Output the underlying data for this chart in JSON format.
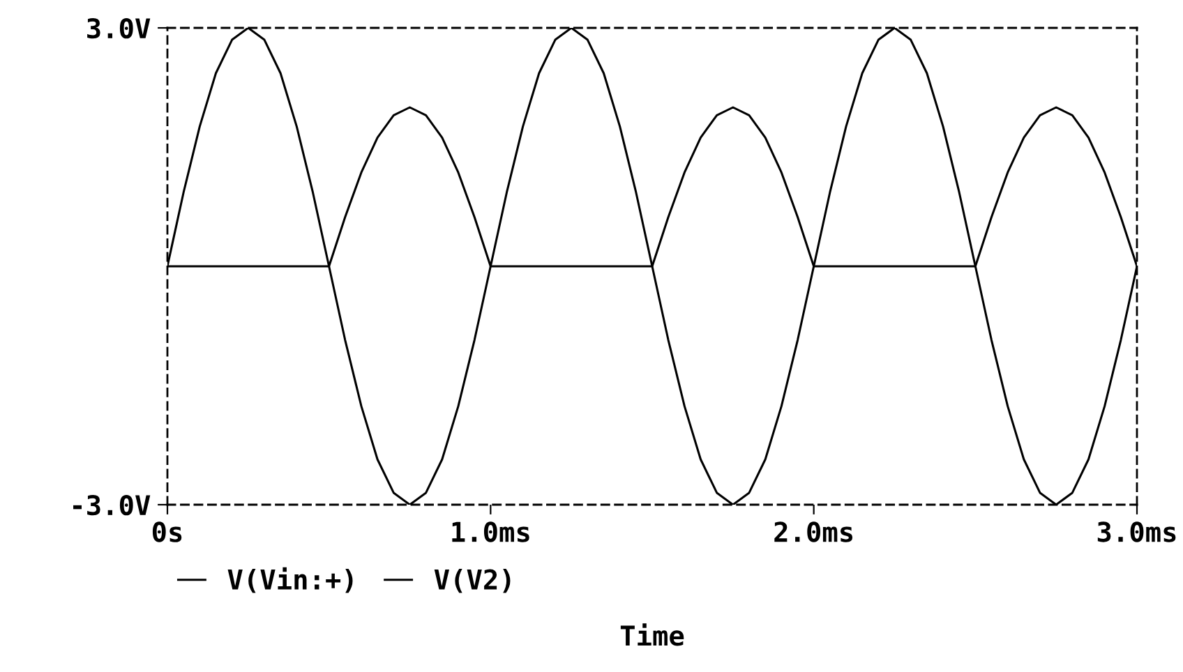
{
  "chart_data": {
    "type": "line",
    "xlabel": "Time",
    "x": [
      0,
      0.05,
      0.1,
      0.15,
      0.2,
      0.25,
      0.3,
      0.35,
      0.4,
      0.45,
      0.5,
      0.55,
      0.6,
      0.65,
      0.7,
      0.75,
      0.8,
      0.85,
      0.9,
      0.95,
      1.0,
      1.05,
      1.1,
      1.15,
      1.2,
      1.25,
      1.3,
      1.35,
      1.4,
      1.45,
      1.5,
      1.55,
      1.6,
      1.65,
      1.7,
      1.75,
      1.8,
      1.85,
      1.9,
      1.95,
      2.0,
      2.05,
      2.1,
      2.15,
      2.2,
      2.25,
      2.3,
      2.35,
      2.4,
      2.45,
      2.5,
      2.55,
      2.6,
      2.65,
      2.7,
      2.75,
      2.8,
      2.85,
      2.9,
      2.95,
      3.0
    ],
    "series": [
      {
        "name": "V(Vin:+)",
        "color": "#000000",
        "values": [
          0,
          0.93,
          1.76,
          2.43,
          2.85,
          3.0,
          2.85,
          2.43,
          1.76,
          0.93,
          0,
          -0.93,
          -1.76,
          -2.43,
          -2.85,
          -3.0,
          -2.85,
          -2.43,
          -1.76,
          -0.93,
          0,
          0.93,
          1.76,
          2.43,
          2.85,
          3.0,
          2.85,
          2.43,
          1.76,
          0.93,
          0,
          -0.93,
          -1.76,
          -2.43,
          -2.85,
          -3.0,
          -2.85,
          -2.43,
          -1.76,
          -0.93,
          0,
          0.93,
          1.76,
          2.43,
          2.85,
          3.0,
          2.85,
          2.43,
          1.76,
          0.93,
          0,
          -0.93,
          -1.76,
          -2.43,
          -2.85,
          -3.0,
          -2.85,
          -2.43,
          -1.76,
          -0.93,
          0
        ]
      },
      {
        "name": "V(V2)",
        "color": "#000000",
        "values": [
          0,
          0,
          0,
          0,
          0,
          0,
          0,
          0,
          0,
          0,
          0,
          0.62,
          1.18,
          1.62,
          1.9,
          2.0,
          1.9,
          1.62,
          1.18,
          0.62,
          0,
          0,
          0,
          0,
          0,
          0,
          0,
          0,
          0,
          0,
          0,
          0.62,
          1.18,
          1.62,
          1.9,
          2.0,
          1.9,
          1.62,
          1.18,
          0.62,
          0,
          0,
          0,
          0,
          0,
          0,
          0,
          0,
          0,
          0,
          0,
          0.62,
          1.18,
          1.62,
          1.9,
          2.0,
          1.9,
          1.62,
          1.18,
          0.62,
          0
        ]
      }
    ],
    "xlim": [
      0,
      3
    ],
    "xticks": [
      {
        "value": 0,
        "label": "0s"
      },
      {
        "value": 1,
        "label": "1.0ms"
      },
      {
        "value": 2,
        "label": "2.0ms"
      },
      {
        "value": 3,
        "label": "3.0ms"
      }
    ],
    "ylim": [
      -3,
      3
    ],
    "yticks": [
      {
        "value": -3,
        "label": "-3.0V"
      },
      {
        "value": 3,
        "label": "3.0V"
      }
    ],
    "legend": "bottom",
    "line_style": "solid"
  }
}
